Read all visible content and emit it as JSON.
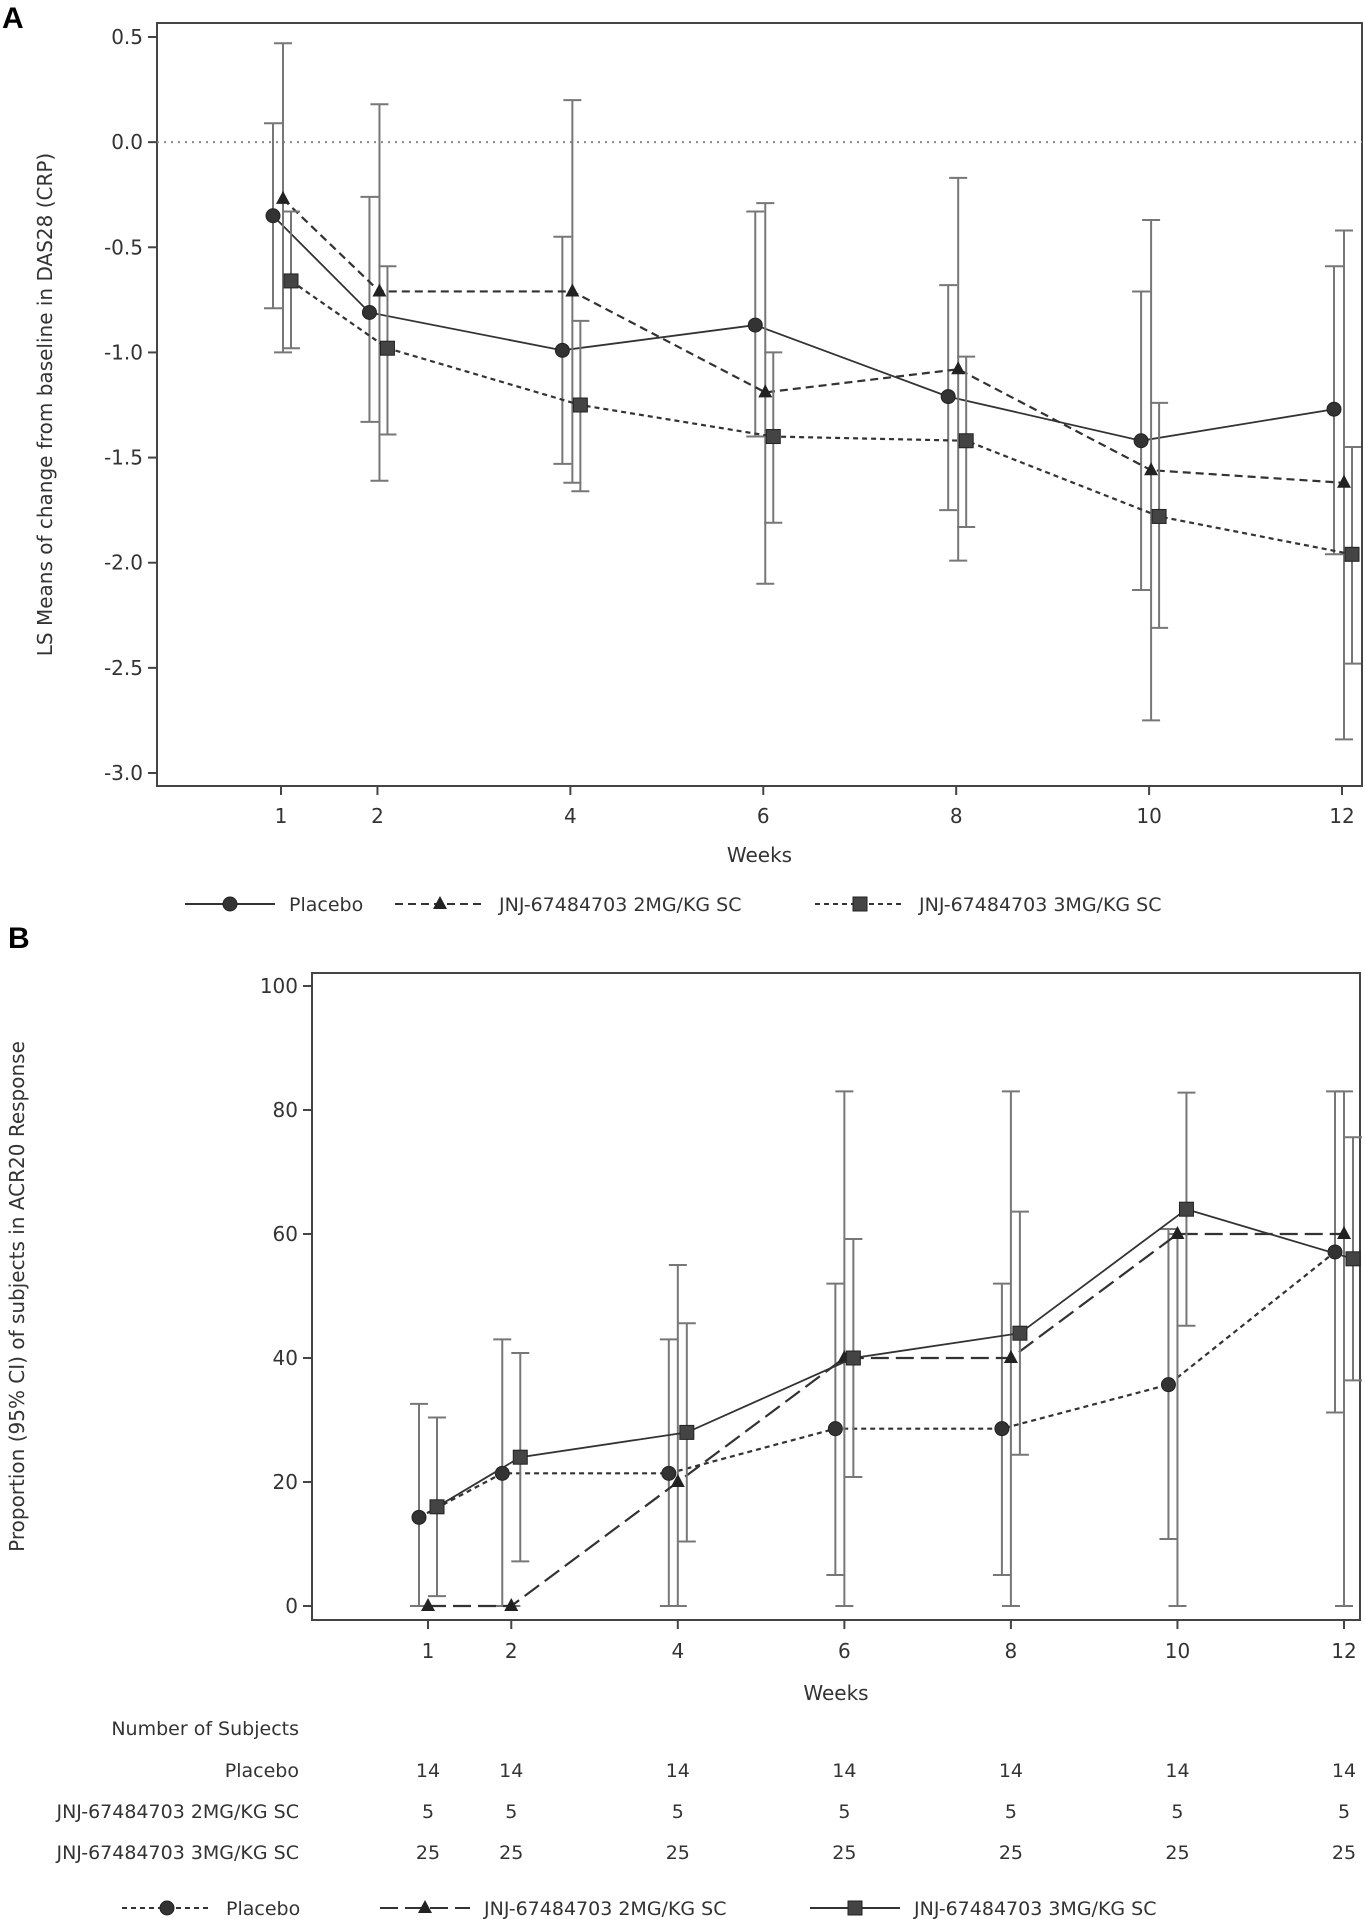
{
  "chart_data": [
    {
      "panel": "A",
      "type": "line",
      "xlabel": "Weeks",
      "ylabel": "LS Means of change from baseline in DAS28 (CRP)",
      "x": [
        1,
        2,
        4,
        6,
        8,
        10,
        12
      ],
      "xticks": [
        "1",
        "2",
        "4",
        "6",
        "8",
        "10",
        "12"
      ],
      "yticks": [
        "0.5",
        "0.0",
        "-0.5",
        "-1.0",
        "-1.5",
        "-2.0",
        "-2.5",
        "-3.0"
      ],
      "ylim": [
        -3.0,
        0.5
      ],
      "reference_line": 0.0,
      "grid": false,
      "legend_position": "bottom",
      "series": [
        {
          "name": "Placebo",
          "marker": "circle",
          "line": "solid",
          "values": [
            -0.35,
            -0.81,
            -0.99,
            -0.87,
            -1.21,
            -1.42,
            -1.27
          ],
          "ci_lower": [
            -0.79,
            -1.33,
            -1.53,
            -1.4,
            -1.75,
            -2.13,
            -1.96
          ],
          "ci_upper": [
            0.09,
            -0.26,
            -0.45,
            -0.33,
            -0.68,
            -0.71,
            -0.59
          ]
        },
        {
          "name": "JNJ-67484703 2MG/KG SC",
          "marker": "triangle",
          "line": "dashed",
          "values": [
            -0.27,
            -0.71,
            -0.71,
            -1.19,
            -1.08,
            -1.56,
            -1.62
          ],
          "ci_lower": [
            -1.0,
            -1.61,
            -1.62,
            -2.1,
            -1.99,
            -2.75,
            -2.84
          ],
          "ci_upper": [
            0.47,
            0.18,
            0.2,
            -0.29,
            -0.17,
            -0.37,
            -0.42
          ]
        },
        {
          "name": "JNJ-67484703 3MG/KG SC",
          "marker": "square",
          "line": "dotted",
          "values": [
            -0.66,
            -0.98,
            -1.25,
            -1.4,
            -1.42,
            -1.78,
            -1.96
          ],
          "ci_lower": [
            -0.98,
            -1.39,
            -1.66,
            -1.81,
            -1.83,
            -2.31,
            -2.48
          ],
          "ci_upper": [
            -0.33,
            -0.59,
            -0.85,
            -1.0,
            -1.02,
            -1.24,
            -1.45
          ]
        }
      ]
    },
    {
      "panel": "B",
      "type": "line",
      "xlabel": "Weeks",
      "ylabel": "Proportion (95% CI) of subjects in ACR20 Response",
      "x": [
        1,
        2,
        4,
        6,
        8,
        10,
        12
      ],
      "xticks": [
        "1",
        "2",
        "4",
        "6",
        "8",
        "10",
        "12"
      ],
      "yticks": [
        "100",
        "80",
        "60",
        "40",
        "20",
        "0"
      ],
      "ylim": [
        0,
        100
      ],
      "grid": false,
      "legend_position": "bottom",
      "series": [
        {
          "name": "Placebo",
          "marker": "circle",
          "line": "dotted",
          "values": [
            14.3,
            21.4,
            21.4,
            28.6,
            28.6,
            35.7,
            57.1
          ],
          "ci_lower": [
            0,
            0,
            0,
            5,
            5,
            10.8,
            31.2
          ],
          "ci_upper": [
            32.6,
            43,
            43,
            52,
            52,
            60.8,
            83
          ]
        },
        {
          "name": "JNJ-67484703 2MG/KG SC",
          "marker": "triangle",
          "line": "long-dash",
          "values": [
            0,
            0,
            20,
            40,
            40,
            60,
            60
          ],
          "ci_lower": [
            0,
            0,
            0,
            0,
            0,
            0,
            0
          ],
          "ci_upper": [
            0,
            0,
            55,
            83,
            83,
            60,
            83
          ]
        },
        {
          "name": "JNJ-67484703 3MG/KG SC",
          "marker": "square",
          "line": "solid",
          "values": [
            16,
            24,
            28,
            40,
            44,
            64,
            56
          ],
          "ci_lower": [
            1.6,
            7.2,
            10.4,
            20.8,
            24.4,
            45.2,
            36.4
          ],
          "ci_upper": [
            30.4,
            40.8,
            45.6,
            59.2,
            63.6,
            82.8,
            75.6
          ]
        }
      ],
      "table": {
        "title": "Number of Subjects",
        "rows": [
          {
            "label": "Placebo",
            "values": [
              "14",
              "14",
              "14",
              "14",
              "14",
              "14",
              "14"
            ]
          },
          {
            "label": "JNJ-67484703 2MG/KG SC",
            "values": [
              "5",
              "5",
              "5",
              "5",
              "5",
              "5",
              "5"
            ]
          },
          {
            "label": "JNJ-67484703 3MG/KG SC",
            "values": [
              "25",
              "25",
              "25",
              "25",
              "25",
              "25",
              "25"
            ]
          }
        ]
      }
    }
  ],
  "panels": {
    "a_label": "A",
    "b_label": "B"
  }
}
